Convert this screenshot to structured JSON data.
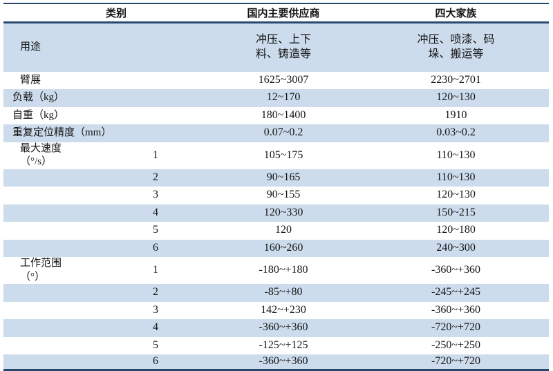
{
  "table": {
    "headers": [
      "类别",
      "国内主要供应商",
      "四大家族"
    ],
    "rows": [
      {
        "label": "用途",
        "joint": "",
        "domestic": "冲压、上下\n料、铸造等",
        "family": "冲压、喷漆、码\n垛、搬运等",
        "shaded": true
      },
      {
        "label": "臂展",
        "joint": "",
        "domestic": "1625~3007",
        "family": "2230~2701",
        "shaded": false
      },
      {
        "label": "负载（kg）",
        "joint": "",
        "domestic": "12~170",
        "family": "120~130",
        "shaded": true
      },
      {
        "label": "自重（kg）",
        "joint": "",
        "domestic": "180~1400",
        "family": "1910",
        "shaded": false
      },
      {
        "label": "重复定位精度（mm）",
        "joint": "",
        "domestic": "0.07~0.2",
        "family": "0.03~0.2",
        "shaded": true
      },
      {
        "label": "最大速度\n（°/s）",
        "joint": "1",
        "domestic": "105~175",
        "family": "110~130",
        "shaded": false
      },
      {
        "label": "",
        "joint": "2",
        "domestic": "90~165",
        "family": "110~130",
        "shaded": true
      },
      {
        "label": "",
        "joint": "3",
        "domestic": "90~155",
        "family": "120~130",
        "shaded": false
      },
      {
        "label": "",
        "joint": "4",
        "domestic": "120~330",
        "family": "150~215",
        "shaded": true
      },
      {
        "label": "",
        "joint": "5",
        "domestic": "120",
        "family": "120~180",
        "shaded": false
      },
      {
        "label": "",
        "joint": "6",
        "domestic": "160~260",
        "family": "240~300",
        "shaded": true
      },
      {
        "label": "工作范围\n（°）",
        "joint": "1",
        "domestic": "-180~+180",
        "family": "-360~+360",
        "shaded": false
      },
      {
        "label": "",
        "joint": "2",
        "domestic": "-85~+80",
        "family": "-245~+245",
        "shaded": true
      },
      {
        "label": "",
        "joint": "3",
        "domestic": "142~+230",
        "family": "-360~+360",
        "shaded": false
      },
      {
        "label": "",
        "joint": "4",
        "domestic": "-360~+360",
        "family": "-720~+720",
        "shaded": true
      },
      {
        "label": "",
        "joint": "5",
        "domestic": "-125~+125",
        "family": "-250~+250",
        "shaded": false
      },
      {
        "label": "",
        "joint": "6",
        "domestic": "-360~+360",
        "family": "-720~+720",
        "shaded": true
      }
    ],
    "colors": {
      "accent_line": "#27496c",
      "row_shade": "#ccdcec",
      "text": "#141414"
    }
  }
}
